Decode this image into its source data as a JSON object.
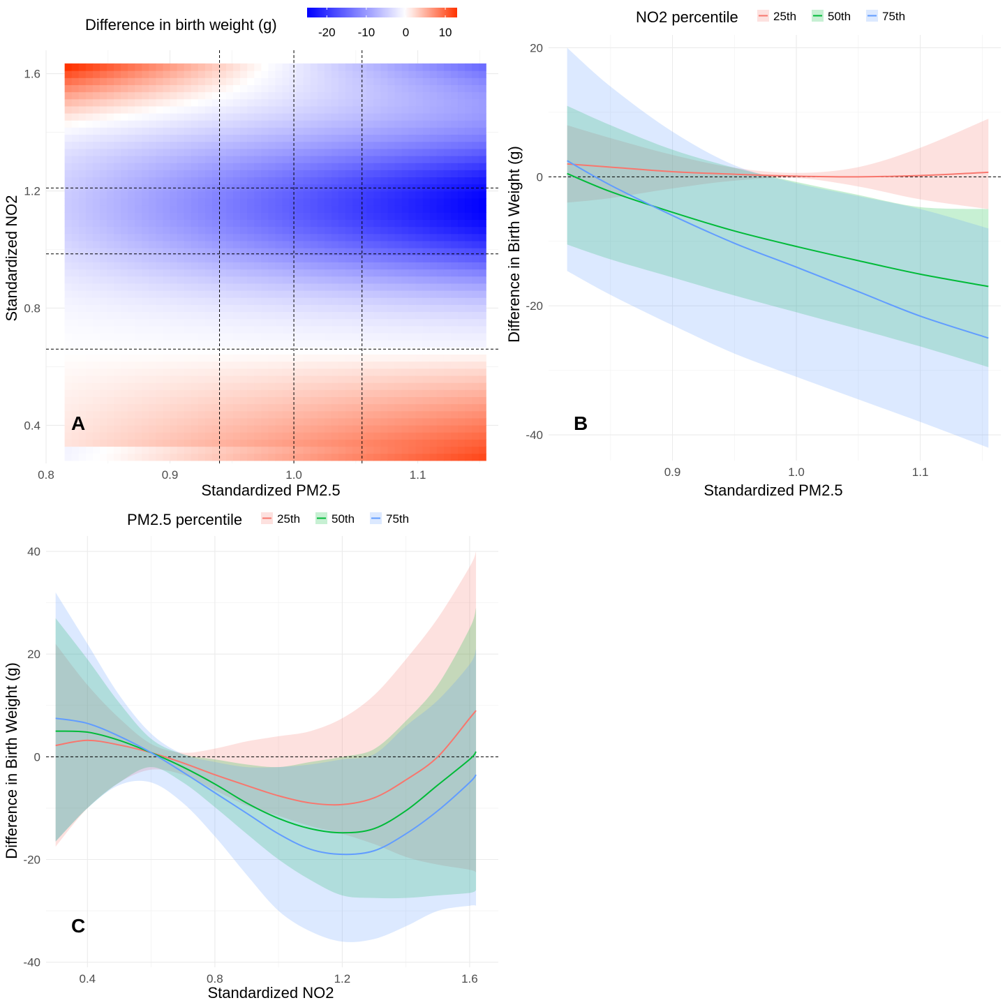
{
  "chart_data": [
    {
      "panel": "A",
      "type": "heatmap",
      "title": "",
      "xlabel": "Standardized PM2.5",
      "ylabel": "Standardized NO2",
      "xlim": [
        0.8,
        1.165
      ],
      "ylim": [
        0.27,
        1.68
      ],
      "xticks": [
        "0.8",
        "0.9",
        "1.0",
        "1.1"
      ],
      "yticks": [
        "0.4",
        "0.8",
        "1.2",
        "1.6"
      ],
      "xrange": [
        0.815,
        1.155
      ],
      "yrange": [
        0.28,
        1.635
      ],
      "legend": {
        "title": "Difference in birth weight (g)",
        "ticks": [
          "-20",
          "-10",
          "0",
          "10"
        ],
        "range": [
          -25,
          13
        ],
        "position": "top",
        "colors": {
          "low": "#0000ff",
          "mid": "#ffffff",
          "high": "#ff3300"
        }
      },
      "vlines": [
        0.94,
        1.0,
        1.055
      ],
      "hlines": [
        0.66,
        0.985,
        1.21
      ],
      "grid": true
    },
    {
      "panel": "B",
      "type": "line",
      "xlabel": "Standardized PM2.5",
      "ylabel": "Difference in Birth Weight (g)",
      "xlim": [
        0.8,
        1.165
      ],
      "ylim": [
        -44,
        22
      ],
      "xticks": [
        "0.9",
        "1.0",
        "1.1"
      ],
      "yticks": [
        "20",
        "0",
        "-20",
        "-40"
      ],
      "hline": 0,
      "legend": {
        "title": "NO2 percentile",
        "position": "top"
      },
      "x": [
        0.815,
        0.85,
        0.9,
        0.95,
        1.0,
        1.05,
        1.1,
        1.155
      ],
      "series": [
        {
          "name": "25th",
          "color": "#f8766d",
          "values": [
            2.0,
            1.5,
            0.8,
            0.4,
            0.1,
            0.0,
            0.2,
            0.7
          ],
          "lower": [
            -4.0,
            -3.3,
            -1.8,
            -0.6,
            -0.2,
            -1.5,
            -3.5,
            -5.0
          ],
          "upper": [
            8.0,
            6.0,
            3.4,
            1.4,
            0.6,
            1.5,
            4.5,
            9.0
          ]
        },
        {
          "name": "50th",
          "color": "#00ba38",
          "values": [
            0.5,
            -2.3,
            -5.5,
            -8.4,
            -10.8,
            -13.0,
            -15.1,
            -17.0
          ],
          "lower": [
            -10.5,
            -12.8,
            -15.6,
            -18.4,
            -21.0,
            -23.6,
            -26.3,
            -29.5
          ],
          "upper": [
            11.0,
            8.0,
            4.2,
            1.4,
            -0.8,
            -2.8,
            -4.7,
            -5.0
          ]
        },
        {
          "name": "75th",
          "color": "#619cff",
          "values": [
            2.5,
            -1.3,
            -6.0,
            -10.3,
            -14.0,
            -17.8,
            -21.6,
            -25.0
          ],
          "lower": [
            -14.6,
            -18.3,
            -23.0,
            -27.4,
            -31.0,
            -34.5,
            -38.0,
            -42.0
          ],
          "upper": [
            20.0,
            14.0,
            7.0,
            1.8,
            -1.0,
            -3.0,
            -5.0,
            -8.0
          ]
        }
      ],
      "grid": true
    },
    {
      "panel": "C",
      "type": "line",
      "xlabel": "Standardized NO2",
      "ylabel": "Difference in Birth Weight (g)",
      "xlim": [
        0.27,
        1.69
      ],
      "ylim": [
        -41,
        43
      ],
      "xticks": [
        "0.4",
        "0.8",
        "1.2",
        "1.6"
      ],
      "yticks": [
        "40",
        "20",
        "0",
        "-20",
        "-40"
      ],
      "hline": 0,
      "legend": {
        "title": "PM2.5 percentile",
        "position": "top"
      },
      "x": [
        0.3,
        0.4,
        0.5,
        0.6,
        0.7,
        0.8,
        0.9,
        1.0,
        1.1,
        1.2,
        1.3,
        1.4,
        1.5,
        1.6,
        1.62
      ],
      "series": [
        {
          "name": "25th",
          "color": "#f8766d",
          "values": [
            2.2,
            3.2,
            2.3,
            0.8,
            -1.2,
            -3.5,
            -5.6,
            -7.6,
            -9.0,
            -9.3,
            -8.0,
            -4.5,
            0.0,
            7.5,
            9.0
          ],
          "lower": [
            -17.5,
            -10.0,
            -5.0,
            -2.5,
            -3.5,
            -6.5,
            -9.5,
            -11.5,
            -13.5,
            -15.0,
            -17.0,
            -19.5,
            -21.0,
            -22.0,
            -22.5
          ],
          "upper": [
            22.0,
            14.0,
            7.5,
            2.5,
            0.8,
            1.6,
            3.0,
            4.0,
            5.0,
            7.5,
            12.0,
            19.0,
            27.0,
            37.0,
            40.0
          ]
        },
        {
          "name": "50th",
          "color": "#00ba38",
          "values": [
            5.0,
            4.8,
            3.2,
            0.8,
            -2.0,
            -5.3,
            -9.0,
            -12.0,
            -14.0,
            -14.8,
            -14.0,
            -10.5,
            -5.5,
            -0.5,
            1.0
          ],
          "lower": [
            -16.5,
            -10.0,
            -5.0,
            -2.0,
            -5.0,
            -9.8,
            -15.0,
            -20.0,
            -24.0,
            -27.0,
            -27.5,
            -27.5,
            -27.0,
            -26.5,
            -26.0
          ],
          "upper": [
            27.0,
            19.0,
            10.5,
            3.5,
            0.5,
            -0.5,
            -1.5,
            -2.0,
            -1.0,
            0.0,
            1.5,
            7.0,
            14.0,
            25.0,
            29.0
          ]
        },
        {
          "name": "75th",
          "color": "#619cff",
          "values": [
            7.5,
            6.5,
            4.0,
            0.8,
            -3.0,
            -7.0,
            -11.0,
            -15.0,
            -18.0,
            -19.0,
            -18.3,
            -15.0,
            -10.5,
            -5.0,
            -3.5
          ],
          "lower": [
            -16.5,
            -10.0,
            -5.5,
            -5.0,
            -9.0,
            -15.5,
            -23.0,
            -30.0,
            -34.0,
            -36.0,
            -35.5,
            -33.0,
            -30.0,
            -29.0,
            -29.0
          ],
          "upper": [
            32.0,
            22.0,
            12.0,
            4.5,
            0.5,
            -1.0,
            -2.0,
            -2.0,
            -1.5,
            -0.5,
            0.5,
            6.0,
            11.0,
            18.0,
            21.0
          ]
        }
      ],
      "grid": true
    }
  ]
}
